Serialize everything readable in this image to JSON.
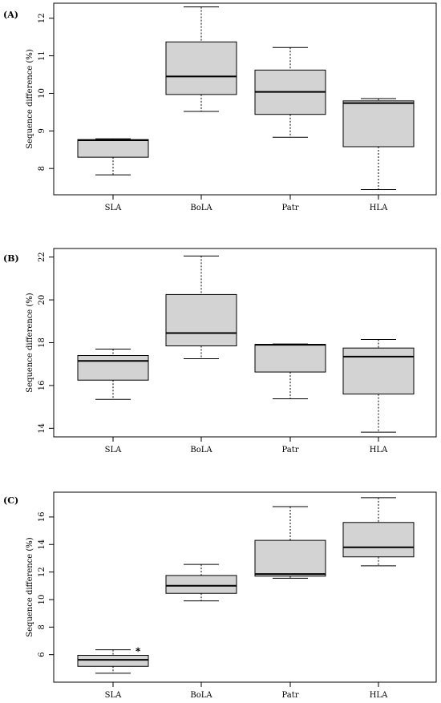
{
  "chart_data": [
    {
      "type": "box",
      "panel_label": "(A)",
      "ylabel": "Sequence difference (%)",
      "xlabel": "",
      "ylim": [
        7.3,
        12.4
      ],
      "yticks": [
        8,
        9,
        10,
        11,
        12
      ],
      "categories": [
        "SLA",
        "BoLA",
        "Patr",
        "HLA"
      ],
      "boxes": [
        {
          "category": "SLA",
          "min": 7.83,
          "q1": 8.3,
          "median": 8.75,
          "q3": 8.77,
          "max": 8.79
        },
        {
          "category": "BoLA",
          "min": 9.52,
          "q1": 9.97,
          "median": 10.45,
          "q3": 11.37,
          "max": 12.3
        },
        {
          "category": "Patr",
          "min": 8.83,
          "q1": 9.44,
          "median": 10.04,
          "q3": 10.62,
          "max": 11.22
        },
        {
          "category": "HLA",
          "min": 7.44,
          "q1": 8.58,
          "median": 9.74,
          "q3": 9.8,
          "max": 9.86
        }
      ],
      "annotations": []
    },
    {
      "type": "box",
      "panel_label": "(B)",
      "ylabel": "Sequence difference (%)",
      "xlabel": "",
      "ylim": [
        13.6,
        22.4
      ],
      "yticks": [
        14,
        16,
        18,
        20,
        22
      ],
      "categories": [
        "SLA",
        "BoLA",
        "Patr",
        "HLA"
      ],
      "boxes": [
        {
          "category": "SLA",
          "min": 15.35,
          "q1": 16.25,
          "median": 17.15,
          "q3": 17.4,
          "max": 17.7
        },
        {
          "category": "BoLA",
          "min": 17.25,
          "q1": 17.85,
          "median": 18.45,
          "q3": 20.25,
          "max": 22.05
        },
        {
          "category": "Patr",
          "min": 15.38,
          "q1": 16.63,
          "median": 17.9,
          "q3": 17.92,
          "max": 17.94
        },
        {
          "category": "HLA",
          "min": 13.82,
          "q1": 15.6,
          "median": 17.35,
          "q3": 17.75,
          "max": 18.15
        }
      ],
      "annotations": []
    },
    {
      "type": "box",
      "panel_label": "(C)",
      "ylabel": "Sequence difference (%)",
      "xlabel": "",
      "ylim": [
        4.0,
        17.8
      ],
      "yticks": [
        6,
        8,
        10,
        12,
        14,
        16
      ],
      "categories": [
        "SLA",
        "BoLA",
        "Patr",
        "HLA"
      ],
      "boxes": [
        {
          "category": "SLA",
          "min": 4.65,
          "q1": 5.15,
          "median": 5.62,
          "q3": 5.95,
          "max": 6.35
        },
        {
          "category": "BoLA",
          "min": 9.9,
          "q1": 10.45,
          "median": 11.0,
          "q3": 11.75,
          "max": 12.55
        },
        {
          "category": "Patr",
          "min": 11.55,
          "q1": 11.7,
          "median": 11.85,
          "q3": 14.3,
          "max": 16.75
        },
        {
          "category": "HLA",
          "min": 12.45,
          "q1": 13.1,
          "median": 13.8,
          "q3": 15.6,
          "max": 17.4
        }
      ],
      "annotations": [
        {
          "category": "SLA",
          "text": "*",
          "y": 6.35
        }
      ]
    }
  ]
}
